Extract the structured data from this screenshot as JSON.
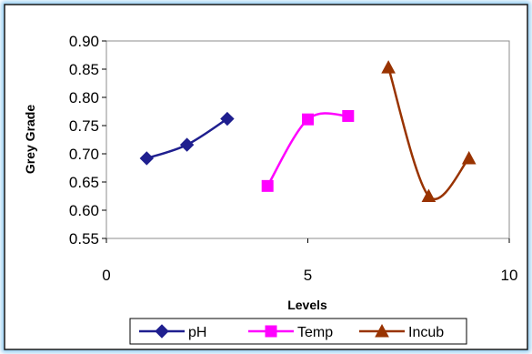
{
  "chart_data": {
    "type": "line",
    "title": "",
    "xlabel": "Levels",
    "ylabel": "Grey Grade",
    "xlim": [
      0,
      10
    ],
    "ylim": [
      0.55,
      0.9
    ],
    "x_ticks": [
      0,
      5,
      10
    ],
    "y_ticks": [
      0.55,
      0.6,
      0.65,
      0.7,
      0.75,
      0.8,
      0.85,
      0.9
    ],
    "grid": false,
    "legend_position": "bottom",
    "series": [
      {
        "name": "pH",
        "color": "#1f1f8f",
        "marker": "diamond",
        "smooth": true,
        "points": [
          {
            "x": 1,
            "y": 0.692
          },
          {
            "x": 2,
            "y": 0.716
          },
          {
            "x": 3,
            "y": 0.762
          }
        ]
      },
      {
        "name": "Temp",
        "color": "#ff00ff",
        "marker": "square",
        "smooth": true,
        "points": [
          {
            "x": 4,
            "y": 0.643
          },
          {
            "x": 5,
            "y": 0.761
          },
          {
            "x": 6,
            "y": 0.767
          }
        ]
      },
      {
        "name": "Incub",
        "color": "#993300",
        "marker": "triangle",
        "smooth": true,
        "points": [
          {
            "x": 7,
            "y": 0.853
          },
          {
            "x": 8,
            "y": 0.625
          },
          {
            "x": 9,
            "y": 0.692
          }
        ]
      }
    ]
  }
}
